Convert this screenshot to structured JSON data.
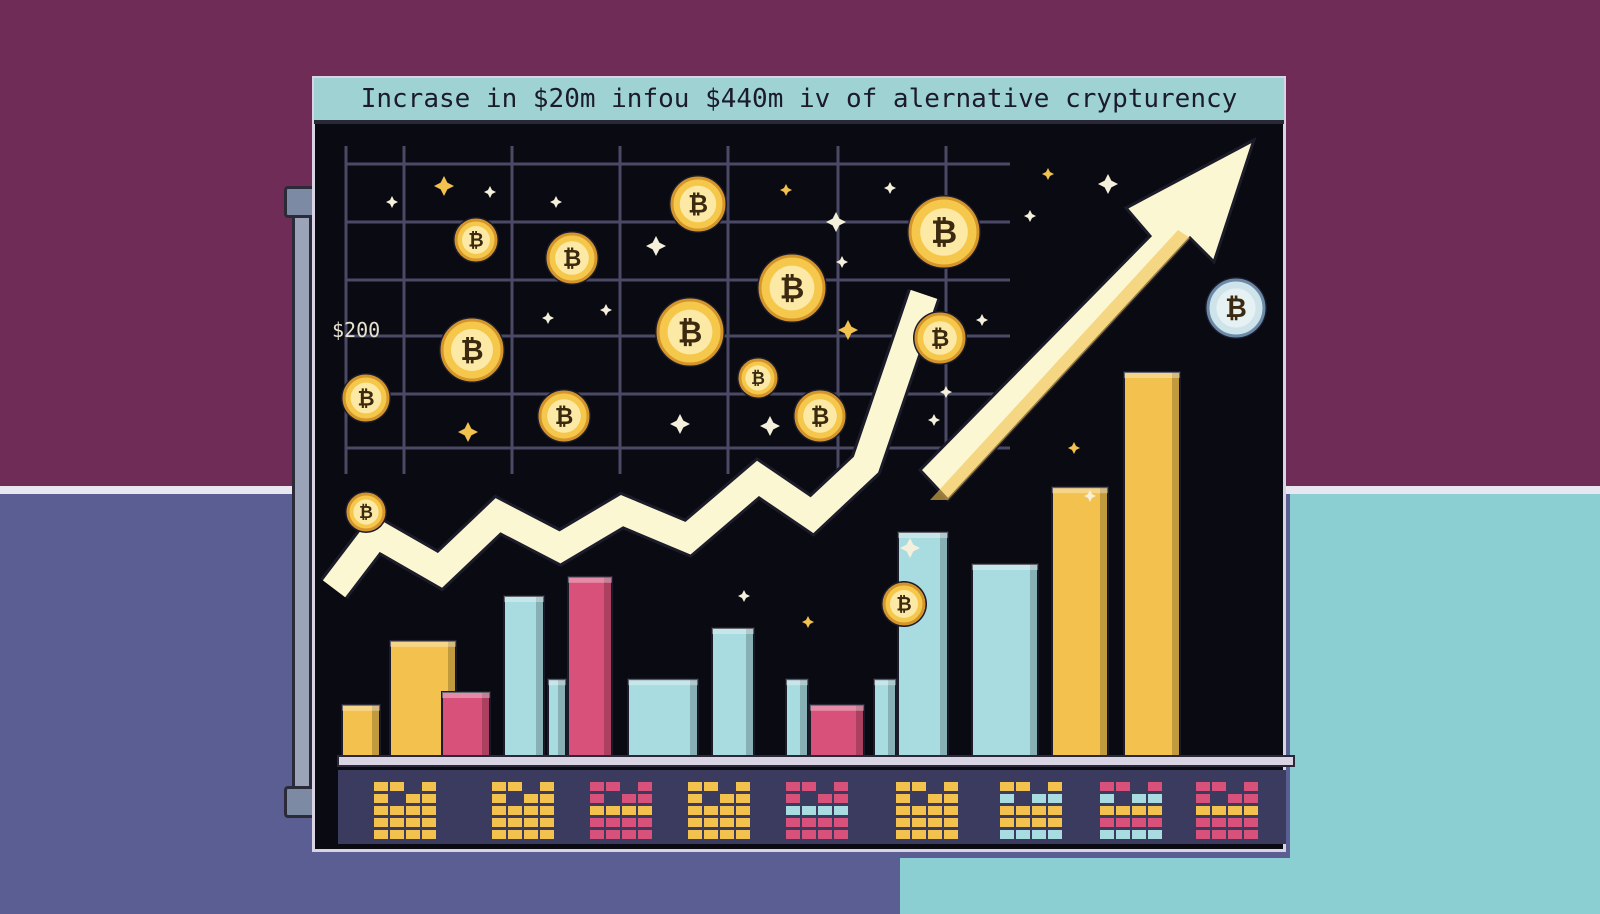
{
  "chart_data": {
    "type": "bar",
    "title": "Incrase in $20m infou $440m iv of alernative crypturency",
    "y_tick_labels": [
      "$200"
    ],
    "grid": true,
    "values": [
      8,
      18,
      10,
      25,
      12,
      28,
      12,
      20,
      12,
      8,
      12,
      35,
      30,
      42,
      60
    ],
    "trend_line": [
      22,
      34,
      26,
      38,
      31,
      39,
      33,
      46,
      38,
      49,
      86
    ]
  },
  "colors": {
    "yellow": "#f2c14e",
    "pink": "#d8517a",
    "light_blue": "#a8dce0",
    "arrow": "#fbf7d2",
    "coin": "#f5c84c",
    "background": "#0a0a12"
  },
  "icons": [
    "bitcoin-coin-icon",
    "sparkle-icon",
    "trend-arrow-icon"
  ]
}
